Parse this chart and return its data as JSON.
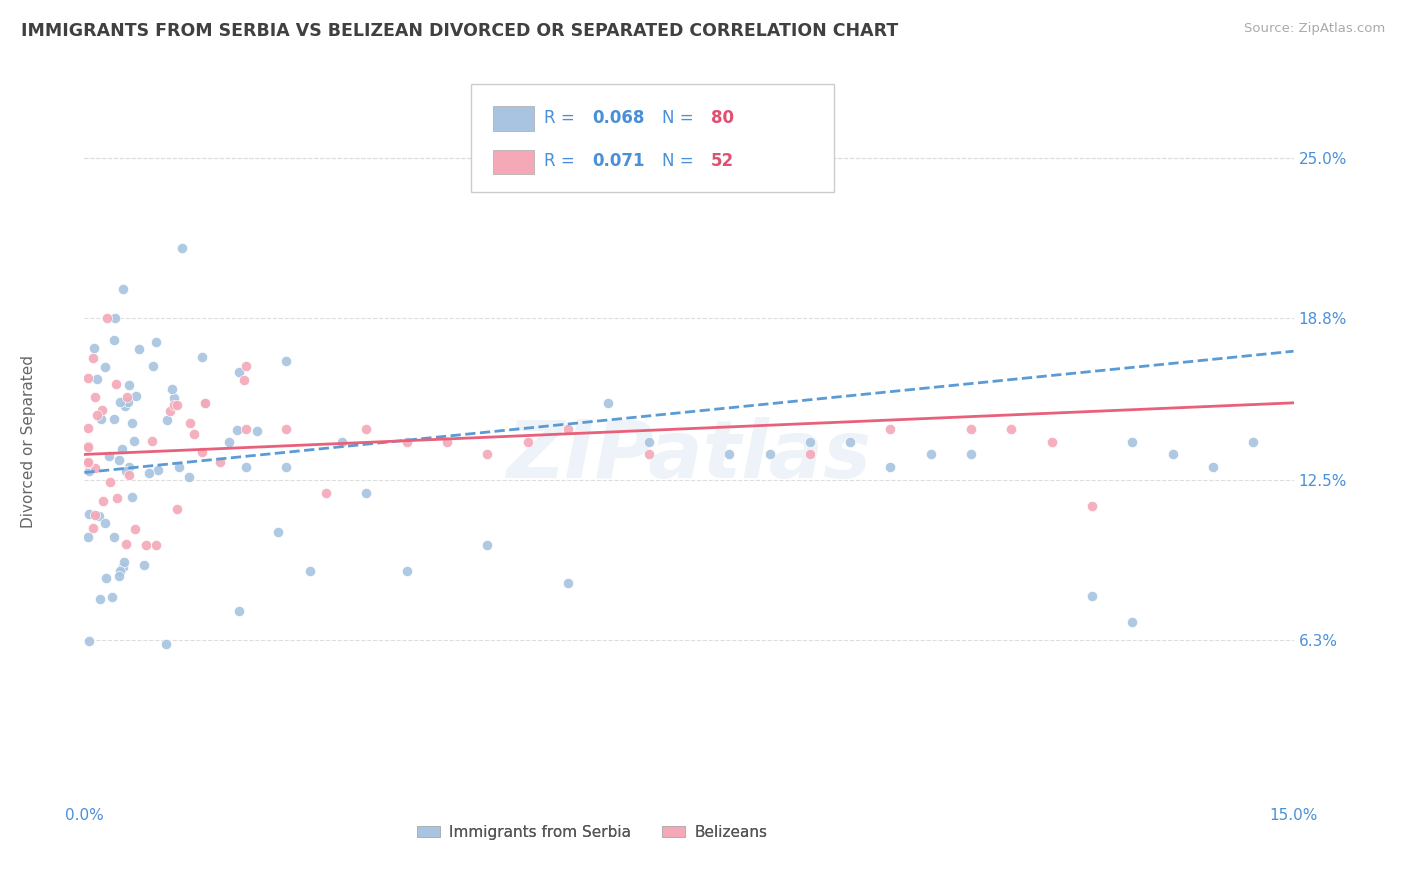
{
  "title": "IMMIGRANTS FROM SERBIA VS BELIZEAN DIVORCED OR SEPARATED CORRELATION CHART",
  "source_text": "Source: ZipAtlas.com",
  "ylabel": "Divorced or Separated",
  "watermark": "ZIPatlas",
  "legend_series1_label": "Immigrants from Serbia",
  "legend_series2_label": "Belizeans",
  "legend_r1": "R = 0.068",
  "legend_n1": "N = 80",
  "legend_r2": "R = 0.071",
  "legend_n2": "N = 52",
  "color1": "#a8c4e0",
  "color2": "#f4a8b8",
  "trendline1_color": "#5b9bd5",
  "trendline2_color": "#e8607a",
  "xlim": [
    0.0,
    0.15
  ],
  "ylim": [
    0.0,
    0.28
  ],
  "xtick_labels": [
    "0.0%",
    "15.0%"
  ],
  "ytick_positions": [
    0.063,
    0.125,
    0.188,
    0.25
  ],
  "ytick_labels": [
    "6.3%",
    "12.5%",
    "18.8%",
    "25.0%"
  ],
  "background_color": "#ffffff",
  "grid_color": "#dddddd",
  "title_color": "#404040",
  "axis_label_color": "#666666",
  "tick_color": "#4a90d9",
  "source_color": "#aaaaaa"
}
